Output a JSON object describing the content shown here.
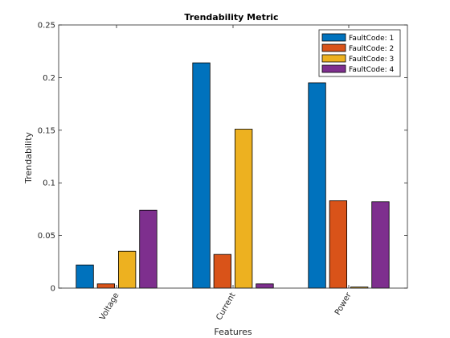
{
  "chart_data": {
    "type": "bar",
    "title": "Trendability Metric",
    "xlabel": "Features",
    "ylabel": "Trendability",
    "categories": [
      "Voltage",
      "Current",
      "Power"
    ],
    "series": [
      {
        "name": "FaultCode: 1",
        "color": "#0072BD",
        "values": [
          0.022,
          0.214,
          0.195
        ]
      },
      {
        "name": "FaultCode: 2",
        "color": "#D95319",
        "values": [
          0.004,
          0.032,
          0.083
        ]
      },
      {
        "name": "FaultCode: 3",
        "color": "#EDB120",
        "values": [
          0.035,
          0.151,
          0.001
        ]
      },
      {
        "name": "FaultCode: 4",
        "color": "#7E2F8E",
        "values": [
          0.074,
          0.004,
          0.082
        ]
      }
    ],
    "ylim": [
      0,
      0.25
    ],
    "yticks": [
      0,
      0.05,
      0.1,
      0.15,
      0.2,
      0.25
    ],
    "ytick_labels": [
      "0",
      "0.05",
      "0.1",
      "0.15",
      "0.2",
      "0.25"
    ],
    "grid": false,
    "legend_position": "top-right"
  }
}
